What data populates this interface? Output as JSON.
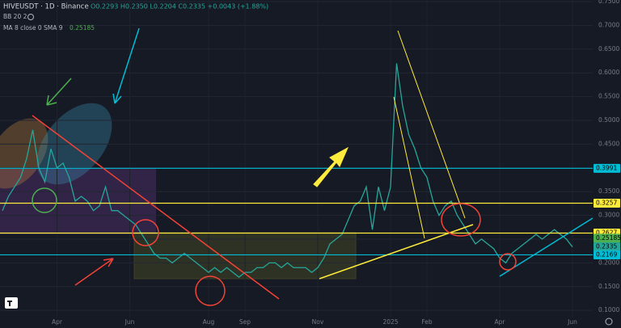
{
  "chart_data": {
    "type": "line",
    "symbol": "HIVEUSDT · 1D · Binance",
    "ohlc": "O0.2293 H0.2350 L0.2204 C0.2335 +0.0043 (+1.88%)",
    "indicator_bb": "BB 20 2",
    "indicator_ma": "MA 8 close 0 SMA 9",
    "ma_value": 0.25185,
    "color": "#26a69a",
    "categories": [
      null,
      null,
      null,
      null,
      null,
      null,
      null,
      null,
      null,
      "Apr",
      null,
      null,
      null,
      null,
      null,
      null,
      null,
      null,
      null,
      null,
      null,
      "Jun",
      null,
      null,
      null,
      null,
      null,
      null,
      null,
      null,
      null,
      null,
      null,
      null,
      "Aug",
      null,
      null,
      null,
      null,
      null,
      "Sep",
      null,
      null,
      null,
      null,
      null,
      null,
      null,
      null,
      null,
      null,
      null,
      "Nov",
      null,
      null,
      null,
      null,
      null,
      null,
      null,
      null,
      null,
      null,
      null,
      "2025",
      null,
      null,
      null,
      null,
      null,
      "Feb",
      null,
      null,
      null,
      null,
      null,
      null,
      null,
      null,
      null,
      null,
      null,
      "Apr",
      null,
      null,
      null,
      null,
      null,
      null,
      null,
      null,
      null,
      null,
      null,
      "Jun"
    ],
    "values": [
      0.31,
      0.34,
      0.36,
      0.38,
      0.42,
      0.48,
      0.4,
      0.37,
      0.44,
      0.4,
      0.41,
      0.38,
      0.33,
      0.34,
      0.33,
      0.31,
      0.32,
      0.36,
      0.31,
      0.31,
      0.3,
      0.29,
      0.28,
      0.26,
      0.24,
      0.22,
      0.21,
      0.21,
      0.2,
      0.21,
      0.22,
      0.21,
      0.2,
      0.19,
      0.18,
      0.19,
      0.18,
      0.19,
      0.18,
      0.17,
      0.18,
      0.18,
      0.19,
      0.19,
      0.2,
      0.2,
      0.19,
      0.2,
      0.19,
      0.19,
      0.19,
      0.18,
      0.19,
      0.21,
      0.24,
      0.25,
      0.26,
      0.29,
      0.32,
      0.33,
      0.36,
      0.27,
      0.36,
      0.31,
      0.36,
      0.62,
      0.53,
      0.47,
      0.44,
      0.4,
      0.38,
      0.33,
      0.3,
      0.32,
      0.33,
      0.3,
      0.28,
      0.26,
      0.24,
      0.25,
      0.24,
      0.23,
      0.21,
      0.2,
      0.22,
      0.23,
      0.24,
      0.25,
      0.26,
      0.25,
      0.26,
      0.27,
      0.26,
      0.25,
      0.2335
    ],
    "ylim": [
      0.085,
      0.75
    ],
    "yticks": [
      {
        "value": 0.1,
        "label": "0.1000"
      },
      {
        "value": 0.15,
        "label": "0.1500"
      },
      {
        "value": 0.2,
        "label": "0.2000"
      },
      {
        "value": 0.25,
        "label": "0.2500"
      },
      {
        "value": 0.3,
        "label": "0.3000"
      },
      {
        "value": 0.35,
        "label": "0.3500"
      },
      {
        "value": 0.4,
        "label": "0.4000"
      },
      {
        "value": 0.45,
        "label": "0.4500"
      },
      {
        "value": 0.5,
        "label": "0.5000"
      },
      {
        "value": 0.55,
        "label": "0.5500"
      },
      {
        "value": 0.6,
        "label": "0.6000"
      },
      {
        "value": 0.65,
        "label": "0.6500"
      },
      {
        "value": 0.7,
        "label": "0.7000"
      },
      {
        "value": 0.75,
        "label": "0.7500"
      }
    ],
    "price_labels": [
      {
        "value": 0.3991,
        "color": "#00bcd4",
        "line": true
      },
      {
        "value": 0.3257,
        "color": "#ffeb3b",
        "line": true
      },
      {
        "value": 0.2627,
        "color": "#ffeb3b",
        "line": true
      },
      {
        "value": 0.25185,
        "color": "#4caf50",
        "line": false
      },
      {
        "value": 0.2335,
        "color": "#26a69a",
        "line": false
      },
      {
        "value": 0.2169,
        "color": "#00bcd4",
        "line": true
      }
    ]
  }
}
